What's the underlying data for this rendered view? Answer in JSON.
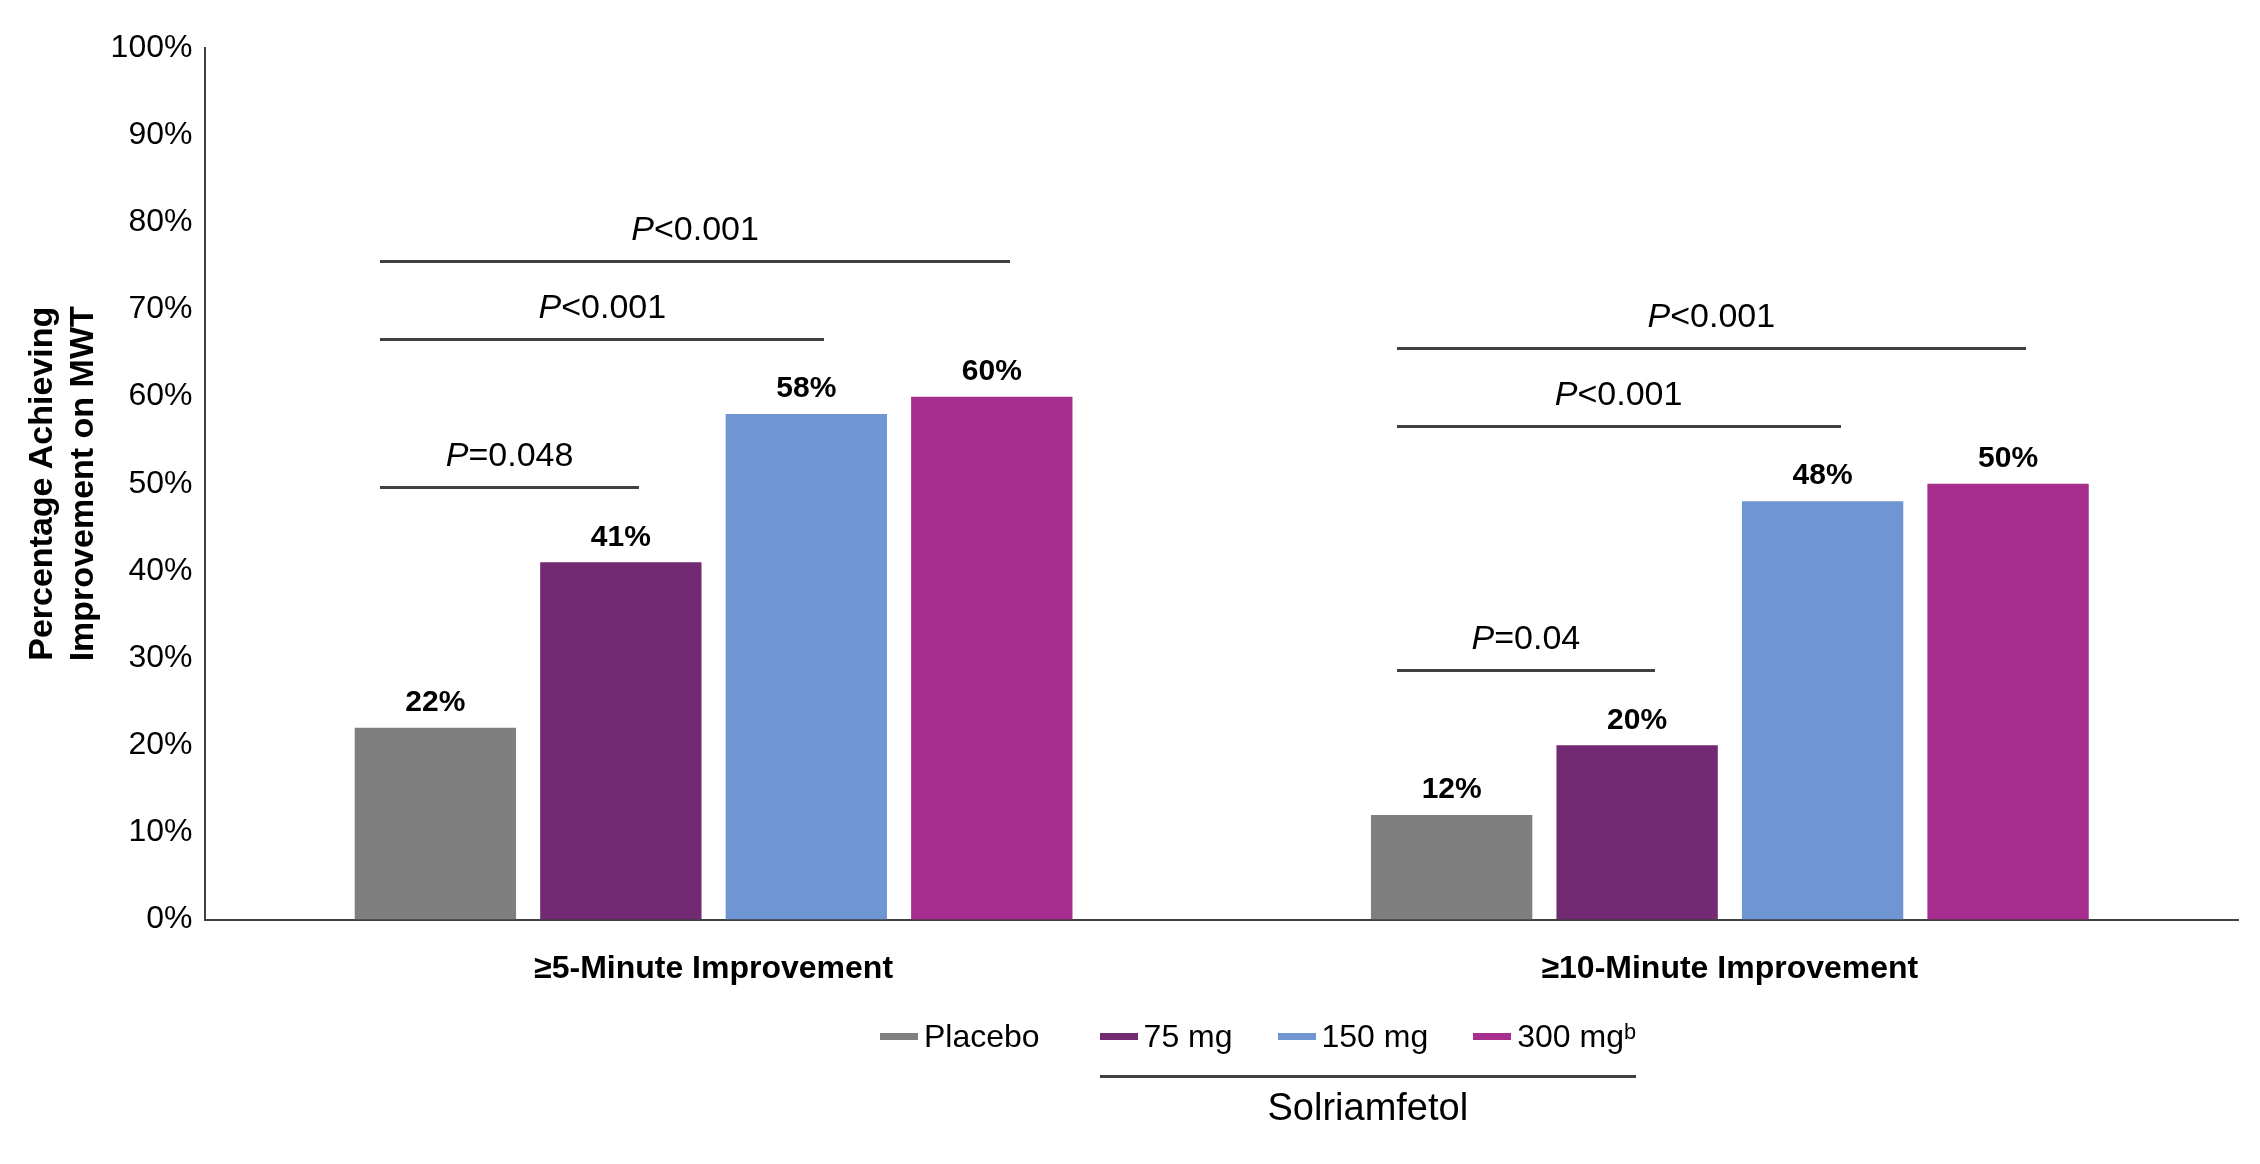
{
  "chart_data": {
    "type": "bar",
    "ylabel": "Percentage Achieving Improvement on MWT",
    "categories": [
      "≥5-Minute Improvement",
      "≥10-Minute Improvement"
    ],
    "series": [
      {
        "name": "Placebo",
        "color": "#7f7f7f",
        "values": [
          22,
          12
        ],
        "value_labels": [
          "22%",
          "12%"
        ]
      },
      {
        "name": "75 mg",
        "color": "#722a72",
        "values": [
          41,
          20
        ],
        "value_labels": [
          "41%",
          "20%"
        ]
      },
      {
        "name": "150 mg",
        "color": "#6f96d2",
        "values": [
          58,
          48
        ],
        "value_labels": [
          "58%",
          "48%"
        ]
      },
      {
        "name": "300 mgᵇ",
        "color": "#a72d8e",
        "values": [
          60,
          50
        ],
        "value_labels": [
          "60%",
          "50%"
        ]
      }
    ],
    "ylim": [
      0,
      100
    ],
    "yticks": [
      {
        "value": 0,
        "label": "0%"
      },
      {
        "value": 10,
        "label": "10%"
      },
      {
        "value": 20,
        "label": "20%"
      },
      {
        "value": 30,
        "label": "30%"
      },
      {
        "value": 40,
        "label": "40%"
      },
      {
        "value": 50,
        "label": "50%"
      },
      {
        "value": 60,
        "label": "60%"
      },
      {
        "value": 70,
        "label": "70%"
      },
      {
        "value": 80,
        "label": "80%"
      },
      {
        "value": 90,
        "label": "90%"
      },
      {
        "value": 100,
        "label": "100%"
      }
    ],
    "grid": false,
    "legend": "bottom",
    "legend_title": "Solriamfetol",
    "annotations": [
      "P=0.048",
      "P<0.001",
      "P<0.001",
      "P=0.04",
      "P<0.001",
      "P<0.001"
    ]
  }
}
